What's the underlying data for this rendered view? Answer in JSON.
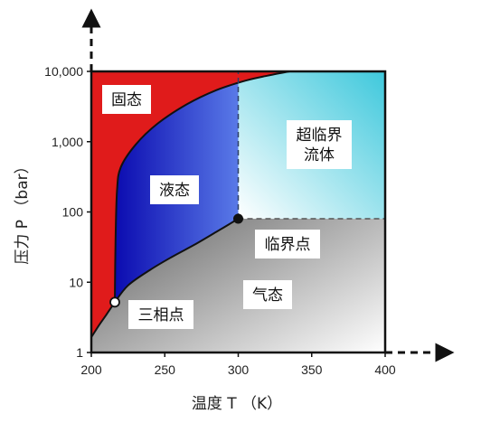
{
  "chart_data": {
    "type": "area",
    "title": "",
    "xlabel": "温度 T （K）",
    "ylabel": "压力 P （bar）",
    "x_ticks": [
      "200",
      "250",
      "300",
      "350",
      "400"
    ],
    "y_ticks": [
      "1",
      "10",
      "100",
      "1,000",
      "10,000"
    ],
    "xlim": [
      200,
      400
    ],
    "ylim": [
      1,
      10000
    ],
    "y_scale": "log",
    "grid": false,
    "colors": {
      "solid": "#e01b1b",
      "liquid_dark": "#0b0bb0",
      "liquid_light": "#7aa8ff",
      "supercritical_dark": "#3ec8dc",
      "gas_dark": "#6e6e6e",
      "gas_light": "#ffffff"
    },
    "regions": [
      {
        "label": "固态"
      },
      {
        "label": "液态"
      },
      {
        "label": "超临界\n流体"
      },
      {
        "label": "气态"
      }
    ],
    "points": [
      {
        "label": "三相点",
        "x": 216,
        "y": 5.2,
        "style": "hollow"
      },
      {
        "label": "临界点",
        "x": 300,
        "y": 80,
        "style": "filled"
      }
    ],
    "curves": {
      "sublimation": [
        [
          200,
          1.65
        ],
        [
          205,
          2.4
        ],
        [
          210,
          3.4
        ],
        [
          216,
          5.2
        ]
      ],
      "vaporization": [
        [
          216,
          5.2
        ],
        [
          225,
          9
        ],
        [
          240,
          15
        ],
        [
          255,
          23
        ],
        [
          270,
          34
        ],
        [
          285,
          52
        ],
        [
          300,
          80
        ]
      ],
      "melting": [
        [
          216,
          5.2
        ],
        [
          216.5,
          40
        ],
        [
          217.5,
          200
        ],
        [
          220,
          430
        ],
        [
          230,
          900
        ],
        [
          245,
          1800
        ],
        [
          265,
          3400
        ],
        [
          285,
          5400
        ],
        [
          305,
          7400
        ],
        [
          320,
          8700
        ],
        [
          335,
          10000
        ]
      ]
    },
    "boundaries": {
      "critical_temperature": 300,
      "critical_pressure": 80
    }
  }
}
